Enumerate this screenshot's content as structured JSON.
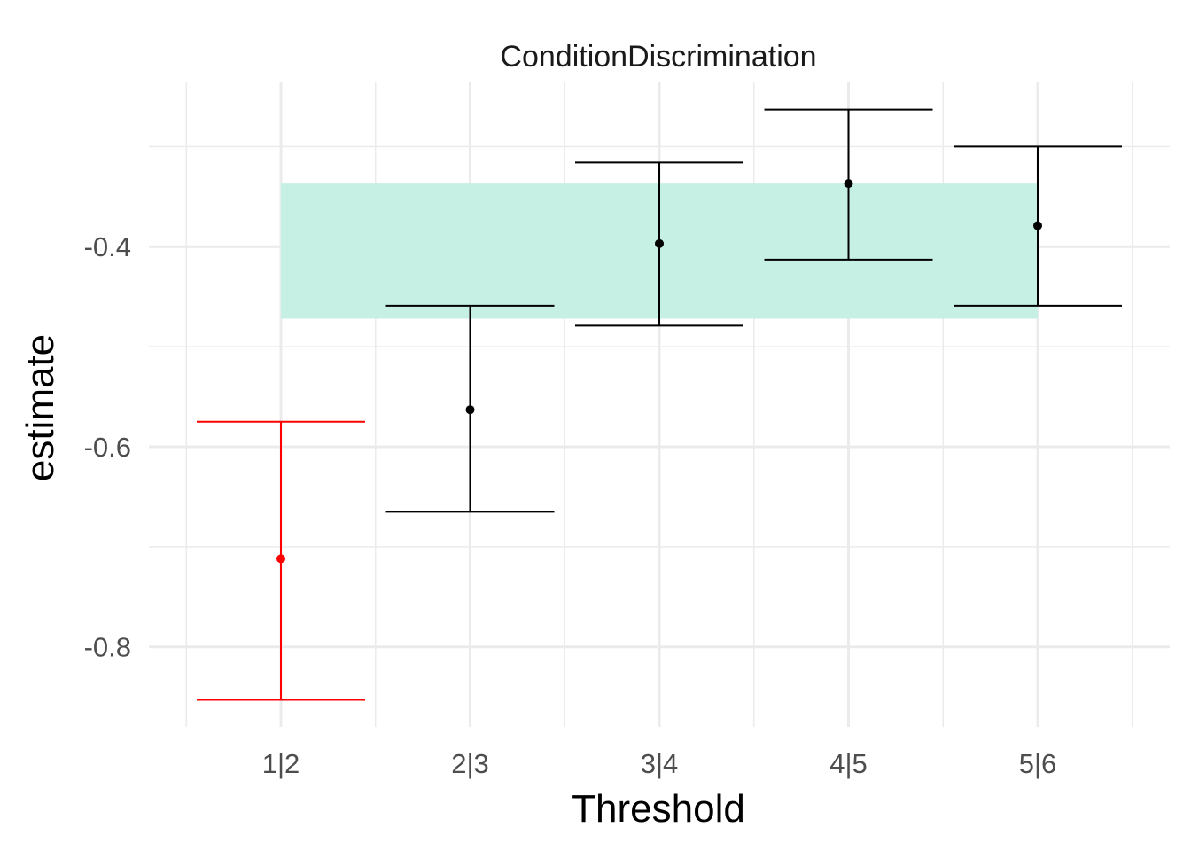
{
  "chart_data": {
    "type": "errorbar",
    "title": "ConditionDiscrimination",
    "xlabel": "Threshold",
    "ylabel": "estimate",
    "categories": [
      "1|2",
      "2|3",
      "3|4",
      "4|5",
      "5|6"
    ],
    "estimate": [
      -0.712,
      -0.563,
      -0.397,
      -0.337,
      -0.379
    ],
    "lower": [
      -0.853,
      -0.665,
      -0.479,
      -0.413,
      -0.459
    ],
    "upper": [
      -0.575,
      -0.459,
      -0.316,
      -0.263,
      -0.3
    ],
    "highlight_category": "1|2",
    "y_ticks": [
      -0.8,
      -0.6,
      -0.4
    ],
    "y_tick_labels": [
      "-0.8",
      "-0.6",
      "-0.4"
    ],
    "ylim": [
      -0.88,
      -0.235
    ],
    "band": {
      "x_from": "1|2",
      "x_to": "5|6",
      "ymin": -0.472,
      "ymax": -0.337
    },
    "grid": true,
    "colors": {
      "highlight": "#ff0000",
      "default": "#000000",
      "band": "#c6f0e4",
      "grid": "#ebebeb"
    }
  }
}
